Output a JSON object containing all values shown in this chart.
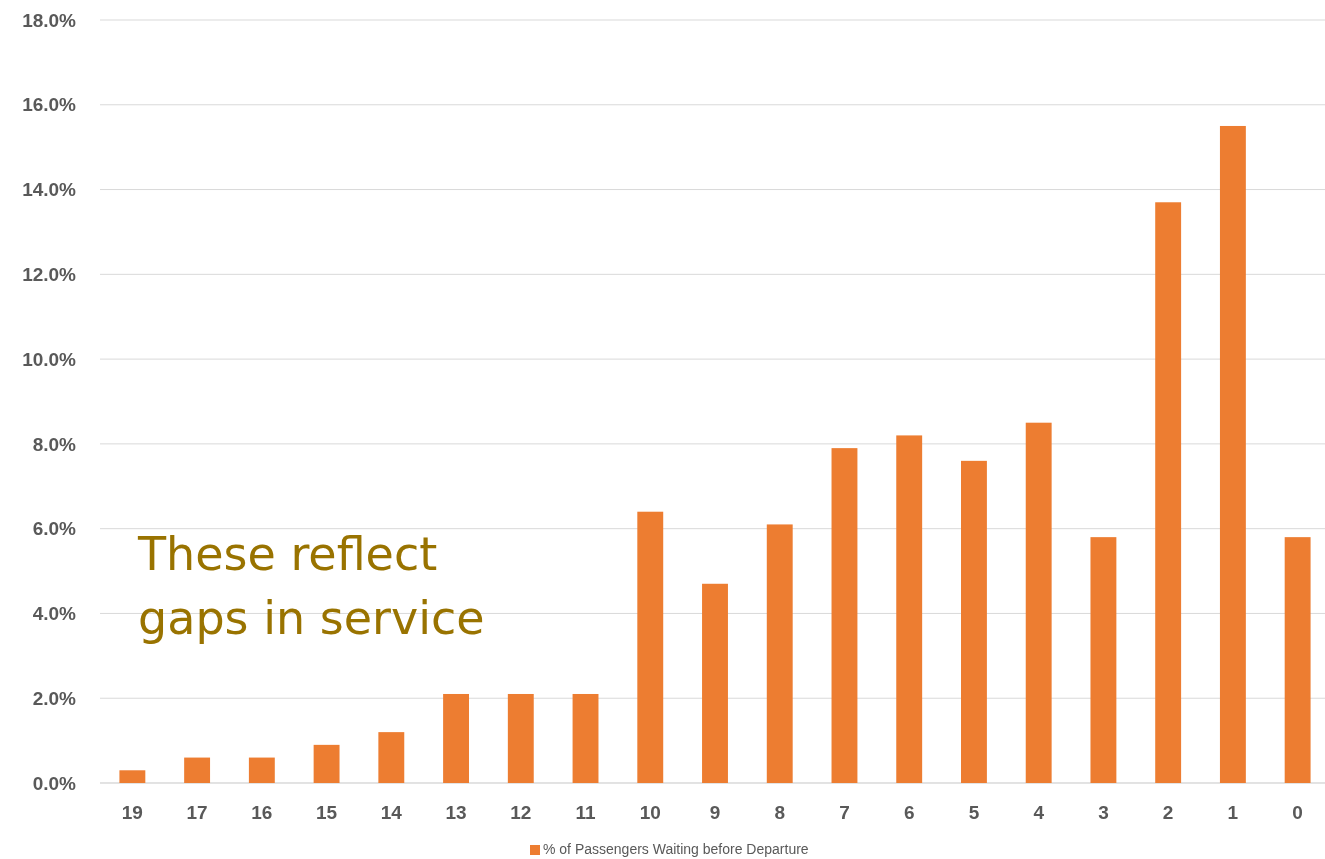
{
  "chart_data": {
    "type": "bar",
    "categories": [
      "19",
      "17",
      "16",
      "15",
      "14",
      "13",
      "12",
      "11",
      "10",
      "9",
      "8",
      "7",
      "6",
      "5",
      "4",
      "3",
      "2",
      "1",
      "0"
    ],
    "series": [
      {
        "name": "% of Passengers Waiting before Departure",
        "color": "#ed7d31",
        "values": [
          0.3,
          0.6,
          0.6,
          0.9,
          1.2,
          2.1,
          2.1,
          2.1,
          6.4,
          4.7,
          6.1,
          7.9,
          8.2,
          7.6,
          8.5,
          5.8,
          13.7,
          15.5,
          5.8
        ]
      }
    ],
    "ylim": [
      0,
      18
    ],
    "yticks": [
      {
        "value": 0,
        "label": "0.0%"
      },
      {
        "value": 2,
        "label": "2.0%"
      },
      {
        "value": 4,
        "label": "4.0%"
      },
      {
        "value": 6,
        "label": "6.0%"
      },
      {
        "value": 8,
        "label": "8.0%"
      },
      {
        "value": 10,
        "label": "10.0%"
      },
      {
        "value": 12,
        "label": "12.0%"
      },
      {
        "value": 14,
        "label": "14.0%"
      },
      {
        "value": 16,
        "label": "16.0%"
      },
      {
        "value": 18,
        "label": "18.0%"
      }
    ],
    "grid": "y",
    "legend": "bottom",
    "annotations": [
      "These reflect gaps in service"
    ]
  }
}
